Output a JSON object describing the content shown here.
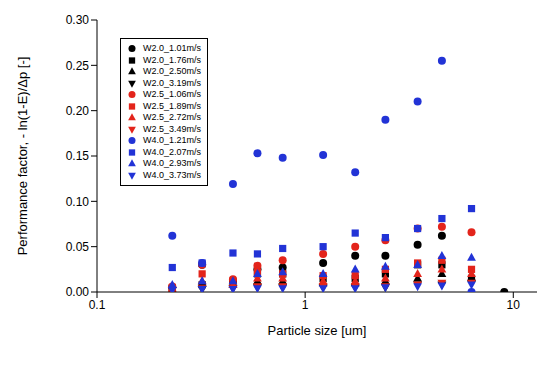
{
  "chart_data": {
    "type": "scatter",
    "x_label": "Particle size [um]",
    "y_label": "Performance factor, - ln(1-E)/Δp [-]",
    "log": "x",
    "legend": "upper left",
    "xlim": [
      0.1,
      13
    ],
    "xticks": [
      0.1,
      1,
      10
    ],
    "ylim": [
      0,
      0.3
    ],
    "yticks": [
      {
        "value": 0,
        "label": "0.00"
      },
      0.05,
      {
        "value": 0.1,
        "label": "0.10"
      },
      0.15,
      {
        "value": 0.2,
        "label": "0.20"
      },
      0.25,
      {
        "value": 0.3,
        "label": "0.30"
      }
    ],
    "x": [
      0.23,
      0.32,
      0.45,
      0.59,
      0.78,
      1.22,
      1.74,
      2.43,
      3.47,
      4.54,
      6.3,
      9.05
    ],
    "series": [
      {
        "name": "W2.0_1.01m/s",
        "color": "#000000",
        "marker": "circle",
        "values": [
          0.005,
          0.03,
          0.012,
          0.025,
          0.027,
          0.032,
          0.04,
          0.04,
          0.052,
          0.062,
          null,
          0
        ]
      },
      {
        "name": "W2.0_1.76m/s",
        "color": "#000000",
        "marker": "square",
        "values": [
          0.004,
          0.008,
          0.01,
          0.02,
          0.02,
          0.015,
          0.015,
          0.02,
          0.03,
          0.03,
          0.015,
          null
        ]
      },
      {
        "name": "W2.0_2.50m/s",
        "color": "#000000",
        "marker": "triangle-up",
        "values": [
          0.003,
          0.01,
          0.008,
          0.012,
          0.012,
          0.01,
          0.01,
          0.012,
          0.015,
          0.02,
          0.015,
          null
        ]
      },
      {
        "name": "W2.0_3.19m/s",
        "color": "#000000",
        "marker": "triangle-down",
        "values": [
          0.002,
          0.003,
          0.004,
          0.005,
          0.005,
          0.005,
          0.005,
          0.005,
          0.008,
          0.008,
          0.01,
          null
        ]
      },
      {
        "name": "W2.5_1.06m/s",
        "color": "#e3241b",
        "marker": "circle",
        "values": [
          0.006,
          0.03,
          0.014,
          0.029,
          0.035,
          0.042,
          0.05,
          0.057,
          0.07,
          0.072,
          0.066,
          null
        ]
      },
      {
        "name": "W2.5_1.89m/s",
        "color": "#e3241b",
        "marker": "square",
        "values": [
          0.005,
          0.02,
          0.012,
          0.022,
          0.02,
          0.018,
          0.018,
          0.025,
          0.032,
          0.035,
          0.025,
          null
        ]
      },
      {
        "name": "W2.5_2.72m/s",
        "color": "#e3241b",
        "marker": "triangle-up",
        "values": [
          0.004,
          0.012,
          0.008,
          0.015,
          0.015,
          0.012,
          0.012,
          0.015,
          0.02,
          0.025,
          0.02,
          null
        ]
      },
      {
        "name": "W2.5_3.49m/s",
        "color": "#e3241b",
        "marker": "triangle-down",
        "values": [
          0.002,
          0.004,
          0.004,
          0.006,
          0.006,
          0.006,
          0.006,
          0.006,
          0.008,
          0.01,
          0.01,
          null
        ]
      },
      {
        "name": "W4.0_1.21m/s",
        "color": "#2233d6",
        "marker": "circle",
        "values": [
          0.062,
          0.032,
          0.119,
          0.153,
          0.148,
          0.151,
          0.132,
          0.19,
          0.21,
          0.255,
          0,
          null
        ]
      },
      {
        "name": "W4.0_2.07m/s",
        "color": "#2233d6",
        "marker": "square",
        "values": [
          0.027,
          0.032,
          0.043,
          0.042,
          0.048,
          0.05,
          0.065,
          0.06,
          0.07,
          0.081,
          0.092,
          null
        ]
      },
      {
        "name": "W4.0_2.93m/s",
        "color": "#2233d6",
        "marker": "triangle-up",
        "values": [
          0.008,
          0.012,
          0.012,
          0.02,
          0.022,
          0.02,
          0.025,
          0.028,
          0.03,
          0.04,
          0.038,
          null
        ]
      },
      {
        "name": "W4.0_3.73m/s",
        "color": "#2233d6",
        "marker": "triangle-down",
        "values": [
          0.002,
          0.003,
          0.003,
          0.004,
          0.004,
          0.004,
          0.004,
          0.005,
          0.006,
          0.007,
          0.008,
          null
        ]
      }
    ]
  }
}
